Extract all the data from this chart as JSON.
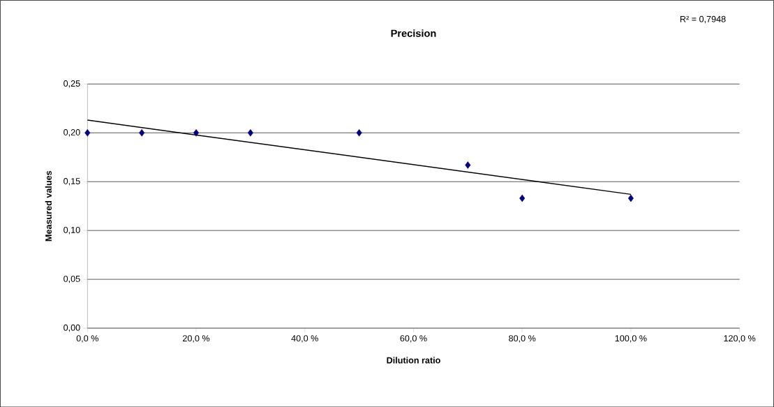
{
  "chart_data": {
    "type": "scatter",
    "title": "Precision",
    "xlabel": "Dilution ratio",
    "ylabel": "Measured values",
    "annotations": [
      "R² = 0,7948"
    ],
    "series": [
      {
        "color": "#000080",
        "marker": "diamond",
        "x": [
          0,
          10,
          20,
          30,
          50,
          70,
          80,
          100
        ],
        "values": [
          0.2,
          0.2,
          0.2,
          0.2,
          0.2,
          0.167,
          0.133,
          0.133
        ]
      },
      {
        "type": "line",
        "color": "#000000",
        "marker": "none",
        "line_style": "solid",
        "x": [
          0,
          100
        ],
        "values": [
          0.213,
          0.137
        ]
      }
    ],
    "xlim": [
      0,
      120
    ],
    "xticks": [
      {
        "value": 0,
        "label": "0,0 %"
      },
      {
        "value": 20,
        "label": "20,0 %"
      },
      {
        "value": 40,
        "label": "40,0 %"
      },
      {
        "value": 60,
        "label": "60,0 %"
      },
      {
        "value": 80,
        "label": "80,0 %"
      },
      {
        "value": 100,
        "label": "100,0 %"
      },
      {
        "value": 120,
        "label": "120,0 %"
      }
    ],
    "ylim": [
      0,
      0.25
    ],
    "yticks": [
      {
        "value": 0,
        "label": "0,00"
      },
      {
        "value": 0.05,
        "label": "0,05"
      },
      {
        "value": 0.1,
        "label": "0,10"
      },
      {
        "value": 0.15,
        "label": "0,15"
      },
      {
        "value": 0.2,
        "label": "0,20"
      },
      {
        "value": 0.25,
        "label": "0,25"
      }
    ],
    "grid": "y"
  }
}
